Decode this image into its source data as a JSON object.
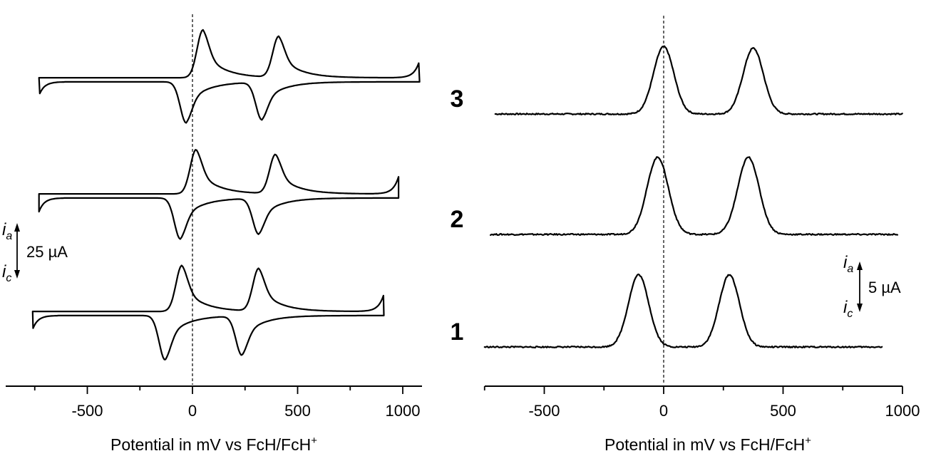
{
  "chart_data": [
    {
      "type": "line",
      "subtype": "cyclic voltammogram",
      "xlabel": "Potential in mV vs FcH/FcH",
      "xlabel_sup": "+",
      "xlim": [
        -870,
        1100
      ],
      "x_ticks": [
        -500,
        0,
        500,
        1000
      ],
      "x_tick_labels": [
        "-500",
        "0",
        "500",
        "1000"
      ],
      "scale_bar": {
        "label": "25 µA",
        "anodic": "i",
        "anodic_sub": "a",
        "cathodic": "i",
        "cathodic_sub": "c",
        "value_uA": 25
      },
      "series": [
        {
          "label": "3",
          "start": -730,
          "vertex": 1080,
          "pairs": [
            {
              "E": 10,
              "ip_a": 28,
              "ip_c": -24,
              "sep": 80
            },
            {
              "E": 370,
              "ip_a": 24,
              "ip_c": -22,
              "sep": 80
            }
          ]
        },
        {
          "label": "2",
          "start": -730,
          "vertex": 980,
          "pairs": [
            {
              "E": -20,
              "ip_a": 26,
              "ip_c": -24,
              "sep": 75
            },
            {
              "E": 355,
              "ip_a": 23,
              "ip_c": -21,
              "sep": 80
            }
          ]
        },
        {
          "label": "1",
          "start": -760,
          "vertex": 910,
          "pairs": [
            {
              "E": -90,
              "ip_a": 27,
              "ip_c": -26,
              "sep": 80
            },
            {
              "E": 275,
              "ip_a": 25,
              "ip_c": -23,
              "sep": 80
            }
          ]
        }
      ]
    },
    {
      "type": "line",
      "subtype": "square wave voltammogram",
      "xlabel": "Potential in mV vs FcH/FcH",
      "xlabel_sup": "+",
      "xlim": [
        -750,
        1000
      ],
      "x_ticks": [
        -500,
        0,
        500,
        1000
      ],
      "x_tick_labels": [
        "-500",
        "0",
        "500",
        "1000"
      ],
      "scale_bar": {
        "label": "5 µA",
        "anodic": "i",
        "anodic_sub": "a",
        "cathodic": "i",
        "cathodic_sub": "c",
        "value_uA": 5
      },
      "series": [
        {
          "label": "3",
          "x_start": -705,
          "x_end": 1000,
          "peaks": [
            {
              "E": 0,
              "height_uA": 8.3,
              "fwhm": 100
            },
            {
              "E": 375,
              "height_uA": 8.1,
              "fwhm": 100
            }
          ]
        },
        {
          "label": "2",
          "x_start": -725,
          "x_end": 980,
          "peaks": [
            {
              "E": -25,
              "height_uA": 9.5,
              "fwhm": 105
            },
            {
              "E": 355,
              "height_uA": 9.5,
              "fwhm": 105
            }
          ]
        },
        {
          "label": "1",
          "x_start": -750,
          "x_end": 915,
          "peaks": [
            {
              "E": -105,
              "height_uA": 8.9,
              "fwhm": 100
            },
            {
              "E": 275,
              "height_uA": 8.9,
              "fwhm": 100
            }
          ]
        }
      ]
    }
  ]
}
